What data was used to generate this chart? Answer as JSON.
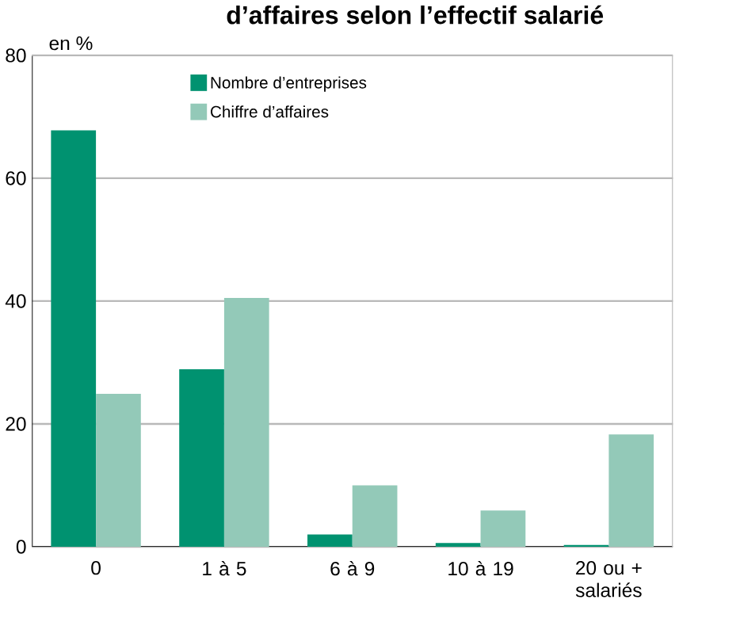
{
  "chart_data": {
    "type": "bar",
    "title": "d’affaires selon l’effectif salarié",
    "ylabel": "en %",
    "categories": [
      "0",
      "1 à 5",
      "6 à 9",
      "10 à 19",
      "20 ou + salariés"
    ],
    "series": [
      {
        "name": "Nombre d’entreprises",
        "color": "#009270",
        "values": [
          67.8,
          28.9,
          2.0,
          0.6,
          0.3
        ]
      },
      {
        "name": "Chiffre d’affaires",
        "color": "#93c9b8",
        "values": [
          24.9,
          40.5,
          10.0,
          5.9,
          18.3
        ]
      }
    ],
    "ylim": [
      0,
      80
    ],
    "yticks": [
      0,
      20,
      40,
      60,
      80
    ],
    "grid": "y",
    "legend": "top"
  }
}
